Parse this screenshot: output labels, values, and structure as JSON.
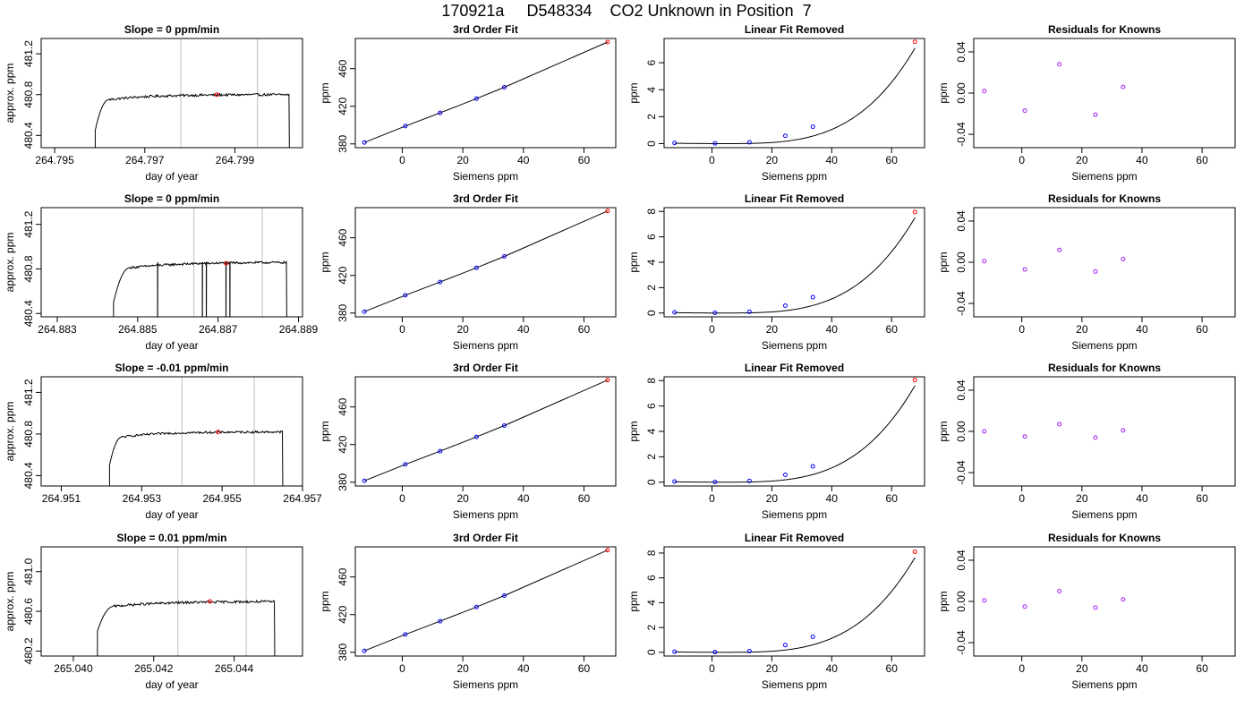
{
  "figure": {
    "title": "170921a     D548334    CO2 Unknown in Position  7"
  },
  "colors": {
    "trace": "#000000",
    "gridline": "#bebebe",
    "marker_standard": "#0000ff",
    "marker_unknown": "#ff0000",
    "residual_marker": "#a020f0"
  },
  "chart_data": [
    {
      "type": "line",
      "panel": "timeseries",
      "row": 1,
      "title": "Slope =  0  ppm/min",
      "xlabel": "day of year",
      "ylabel": "approx. ppm",
      "xlim": [
        264.7947,
        264.8005
      ],
      "ylim": [
        480.28,
        481.35
      ],
      "xticks": [
        264.795,
        264.797,
        264.799
      ],
      "xtick_labels": [
        "264.795",
        "264.797",
        "264.799"
      ],
      "yticks": [
        480.4,
        480.8,
        481.2
      ],
      "ytick_labels": [
        "480.4",
        "480.8",
        "481.2"
      ],
      "vlines": [
        264.7978,
        264.7995
      ],
      "marker": {
        "x": 264.7986,
        "y": 480.8
      },
      "start": 264.7959,
      "end": 264.8002,
      "plateau": 480.8,
      "rise_end": 264.7962,
      "rise_start_level": 480.45,
      "jitter": 0.012,
      "dips": []
    },
    {
      "type": "line",
      "panel": "timeseries",
      "row": 2,
      "title": "Slope =  0  ppm/min",
      "xlabel": "day of year",
      "ylabel": "approx. ppm",
      "xlim": [
        264.8826,
        264.8891
      ],
      "ylim": [
        480.37,
        481.35
      ],
      "xticks": [
        264.883,
        264.885,
        264.887,
        264.889
      ],
      "xtick_labels": [
        "264.883",
        "264.885",
        "264.887",
        "264.889"
      ],
      "yticks": [
        480.4,
        480.8,
        481.2
      ],
      "ytick_labels": [
        "480.4",
        "480.8",
        "481.2"
      ],
      "vlines": [
        264.8864,
        264.8881
      ],
      "marker": {
        "x": 264.8872,
        "y": 480.85
      },
      "start": 264.8844,
      "end": 264.8887,
      "plateau": 480.86,
      "rise_end": 264.8848,
      "rise_start_level": 480.5,
      "jitter": 0.01,
      "dips": [
        264.8855,
        264.8866,
        264.8867,
        264.8872,
        264.8873
      ]
    },
    {
      "type": "line",
      "panel": "timeseries",
      "row": 3,
      "title": "Slope =  -0.01  ppm/min",
      "xlabel": "day of year",
      "ylabel": "approx. ppm",
      "xlim": [
        264.9505,
        264.957
      ],
      "ylim": [
        480.3,
        481.35
      ],
      "xticks": [
        264.951,
        264.953,
        264.955,
        264.957
      ],
      "xtick_labels": [
        "264.951",
        "264.953",
        "264.955",
        "264.957"
      ],
      "yticks": [
        480.4,
        480.8,
        481.2
      ],
      "ytick_labels": [
        "480.4",
        "480.8",
        "481.2"
      ],
      "vlines": [
        264.954,
        264.9558
      ],
      "marker": {
        "x": 264.9549,
        "y": 480.82
      },
      "start": 264.9522,
      "end": 264.9565,
      "plateau": 480.82,
      "rise_end": 264.9525,
      "rise_start_level": 480.5,
      "jitter": 0.01,
      "dips": []
    },
    {
      "type": "line",
      "panel": "timeseries",
      "row": 4,
      "title": "Slope =  0.01  ppm/min",
      "xlabel": "day of year",
      "ylabel": "approx. ppm",
      "xlim": [
        265.0392,
        265.0457
      ],
      "ylim": [
        480.15,
        481.25
      ],
      "xticks": [
        265.04,
        265.042,
        265.044
      ],
      "xtick_labels": [
        "265.040",
        "265.042",
        "265.044"
      ],
      "yticks": [
        480.2,
        480.6,
        481.0
      ],
      "ytick_labels": [
        "480.2",
        "480.6",
        "481.0"
      ],
      "vlines": [
        265.0426,
        265.0443
      ],
      "marker": {
        "x": 265.0434,
        "y": 480.7
      },
      "start": 265.0406,
      "end": 265.045,
      "plateau": 480.7,
      "rise_end": 265.041,
      "rise_start_level": 480.4,
      "jitter": 0.012,
      "dips": []
    },
    {
      "type": "scatter",
      "panel": "fit",
      "row": 1,
      "title": "3rd Order Fit",
      "xlabel": "Siemens ppm",
      "ylabel": "ppm",
      "xlim": [
        -15.5,
        70.5
      ],
      "ylim": [
        376,
        492
      ],
      "xticks": [
        0,
        20,
        40,
        60
      ],
      "xtick_labels": [
        "0",
        "20",
        "40",
        "60"
      ],
      "yticks": [
        380,
        420,
        460
      ],
      "ytick_labels": [
        "380",
        "420",
        "460"
      ],
      "standards": {
        "x": [
          -12.5,
          1,
          12.5,
          24.5,
          33.7
        ],
        "y": [
          381.5,
          398.9,
          413.0,
          428.1,
          440.2
        ]
      },
      "unknown": {
        "x": 67.8,
        "y": 488.2
      }
    },
    {
      "type": "scatter",
      "panel": "fit",
      "row": 2,
      "title": "3rd Order Fit",
      "xlabel": "Siemens ppm",
      "ylabel": "ppm",
      "xlim": [
        -15.5,
        70.5
      ],
      "ylim": [
        376,
        492
      ],
      "xticks": [
        0,
        20,
        40,
        60
      ],
      "xtick_labels": [
        "0",
        "20",
        "40",
        "60"
      ],
      "yticks": [
        380,
        420,
        460
      ],
      "ytick_labels": [
        "380",
        "420",
        "460"
      ],
      "standards": {
        "x": [
          -12.5,
          1,
          12.5,
          24.5,
          33.7
        ],
        "y": [
          381.5,
          398.9,
          413.0,
          428.1,
          440.2
        ]
      },
      "unknown": {
        "x": 67.8,
        "y": 488.5
      }
    },
    {
      "type": "scatter",
      "panel": "fit",
      "row": 3,
      "title": "3rd Order Fit",
      "xlabel": "Siemens ppm",
      "ylabel": "ppm",
      "xlim": [
        -15.5,
        70.5
      ],
      "ylim": [
        376,
        492
      ],
      "xticks": [
        0,
        20,
        40,
        60
      ],
      "xtick_labels": [
        "0",
        "20",
        "40",
        "60"
      ],
      "yticks": [
        380,
        420,
        460
      ],
      "ytick_labels": [
        "380",
        "420",
        "460"
      ],
      "standards": {
        "x": [
          -12.5,
          1,
          12.5,
          24.5,
          33.7
        ],
        "y": [
          381.5,
          398.9,
          413.0,
          428.1,
          440.2
        ]
      },
      "unknown": {
        "x": 67.8,
        "y": 488.5
      }
    },
    {
      "type": "scatter",
      "panel": "fit",
      "row": 4,
      "title": "3rd Order Fit",
      "xlabel": "Siemens ppm",
      "ylabel": "ppm",
      "xlim": [
        -15.5,
        70.5
      ],
      "ylim": [
        376,
        492
      ],
      "xticks": [
        0,
        20,
        40,
        60
      ],
      "xtick_labels": [
        "0",
        "20",
        "40",
        "60"
      ],
      "yticks": [
        380,
        420,
        460
      ],
      "ytick_labels": [
        "380",
        "420",
        "460"
      ],
      "standards": {
        "x": [
          -12.5,
          1,
          12.5,
          24.5,
          33.7
        ],
        "y": [
          381.5,
          398.9,
          413.0,
          428.1,
          440.2
        ]
      },
      "unknown": {
        "x": 67.8,
        "y": 488.5
      }
    },
    {
      "type": "scatter",
      "panel": "linear_removed",
      "row": 1,
      "title": "Linear Fit Removed",
      "xlabel": "Siemens ppm",
      "ylabel": "ppm",
      "xlim": [
        -16,
        71
      ],
      "ylim": [
        -0.3,
        7.8
      ],
      "xticks": [
        0,
        20,
        40,
        60
      ],
      "xtick_labels": [
        "0",
        "20",
        "40",
        "60"
      ],
      "yticks": [
        0,
        2,
        4,
        6
      ],
      "ytick_labels": [
        "0",
        "2",
        "4",
        "6"
      ],
      "standards": {
        "x": [
          -12.5,
          1,
          12.5,
          24.5,
          33.7
        ],
        "y": [
          0.05,
          0.02,
          0.1,
          0.58,
          1.25
        ]
      },
      "unknown": {
        "x": 67.8,
        "y": 7.55
      },
      "curve": {
        "x0": 1,
        "scale": 2.357e-06,
        "power": 3.55
      }
    },
    {
      "type": "scatter",
      "panel": "linear_removed",
      "row": 2,
      "title": "Linear Fit Removed",
      "xlabel": "Siemens ppm",
      "ylabel": "ppm",
      "xlim": [
        -16,
        71
      ],
      "ylim": [
        -0.3,
        8.3
      ],
      "xticks": [
        0,
        20,
        40,
        60
      ],
      "xtick_labels": [
        "0",
        "20",
        "40",
        "60"
      ],
      "yticks": [
        0,
        2,
        4,
        6,
        8
      ],
      "ytick_labels": [
        "0",
        "2",
        "4",
        "6",
        "8"
      ],
      "standards": {
        "x": [
          -12.5,
          1,
          12.5,
          24.5,
          33.7
        ],
        "y": [
          0.05,
          0.02,
          0.1,
          0.58,
          1.25
        ]
      },
      "unknown": {
        "x": 67.8,
        "y": 7.95
      },
      "curve": {
        "x0": 1,
        "scale": 2.5e-06,
        "power": 3.55
      }
    },
    {
      "type": "scatter",
      "panel": "linear_removed",
      "row": 3,
      "title": "Linear Fit Removed",
      "xlabel": "Siemens ppm",
      "ylabel": "ppm",
      "xlim": [
        -16,
        71
      ],
      "ylim": [
        -0.3,
        8.3
      ],
      "xticks": [
        0,
        20,
        40,
        60
      ],
      "xtick_labels": [
        "0",
        "20",
        "40",
        "60"
      ],
      "yticks": [
        0,
        2,
        4,
        6,
        8
      ],
      "ytick_labels": [
        "0",
        "2",
        "4",
        "6",
        "8"
      ],
      "standards": {
        "x": [
          -12.5,
          1,
          12.5,
          24.5,
          33.7
        ],
        "y": [
          0.05,
          0.02,
          0.1,
          0.58,
          1.25
        ]
      },
      "unknown": {
        "x": 67.8,
        "y": 8.05
      },
      "curve": {
        "x0": 1,
        "scale": 2.53e-06,
        "power": 3.55
      }
    },
    {
      "type": "scatter",
      "panel": "linear_removed",
      "row": 4,
      "title": "Linear Fit Removed",
      "xlabel": "Siemens ppm",
      "ylabel": "ppm",
      "xlim": [
        -16,
        71
      ],
      "ylim": [
        -0.3,
        8.5
      ],
      "xticks": [
        0,
        20,
        40,
        60
      ],
      "xtick_labels": [
        "0",
        "20",
        "40",
        "60"
      ],
      "yticks": [
        0,
        2,
        4,
        6,
        8
      ],
      "ytick_labels": [
        "0",
        "2",
        "4",
        "6",
        "8"
      ],
      "standards": {
        "x": [
          -12.5,
          1,
          12.5,
          24.5,
          33.7
        ],
        "y": [
          0.05,
          0.02,
          0.1,
          0.58,
          1.25
        ]
      },
      "unknown": {
        "x": 67.8,
        "y": 8.1
      },
      "curve": {
        "x0": 1,
        "scale": 2.54e-06,
        "power": 3.55
      }
    },
    {
      "type": "scatter",
      "panel": "residuals",
      "row": 1,
      "title": "Residuals for Knowns",
      "xlabel": "Siemens ppm",
      "ylabel": "ppm",
      "xlim": [
        -16,
        71
      ],
      "ylim": [
        -0.053,
        0.053
      ],
      "xticks": [
        0,
        20,
        40,
        60
      ],
      "xtick_labels": [
        "0",
        "20",
        "40",
        "60"
      ],
      "yticks": [
        -0.04,
        0.0,
        0.04
      ],
      "ytick_labels": [
        "-0.04",
        "0.00",
        "0.04"
      ],
      "standards": {
        "x": [
          -12.5,
          1,
          12.5,
          24.5,
          33.7
        ],
        "y": [
          0.002,
          -0.017,
          0.028,
          -0.021,
          0.006
        ]
      }
    },
    {
      "type": "scatter",
      "panel": "residuals",
      "row": 2,
      "title": "Residuals for Knowns",
      "xlabel": "Siemens ppm",
      "ylabel": "ppm",
      "xlim": [
        -16,
        71
      ],
      "ylim": [
        -0.053,
        0.053
      ],
      "xticks": [
        0,
        20,
        40,
        60
      ],
      "xtick_labels": [
        "0",
        "20",
        "40",
        "60"
      ],
      "yticks": [
        -0.04,
        0.0,
        0.04
      ],
      "ytick_labels": [
        "-0.04",
        "0.00",
        "0.04"
      ],
      "standards": {
        "x": [
          -12.5,
          1,
          12.5,
          24.5,
          33.7
        ],
        "y": [
          0.001,
          -0.007,
          0.012,
          -0.009,
          0.003
        ]
      }
    },
    {
      "type": "scatter",
      "panel": "residuals",
      "row": 3,
      "title": "Residuals for Knowns",
      "xlabel": "Siemens ppm",
      "ylabel": "ppm",
      "xlim": [
        -16,
        71
      ],
      "ylim": [
        -0.053,
        0.053
      ],
      "xticks": [
        0,
        20,
        40,
        60
      ],
      "xtick_labels": [
        "0",
        "20",
        "40",
        "60"
      ],
      "yticks": [
        -0.04,
        0.0,
        0.04
      ],
      "ytick_labels": [
        "-0.04",
        "0.00",
        "0.04"
      ],
      "standards": {
        "x": [
          -12.5,
          1,
          12.5,
          24.5,
          33.7
        ],
        "y": [
          0.0,
          -0.005,
          0.007,
          -0.006,
          0.001
        ]
      }
    },
    {
      "type": "scatter",
      "panel": "residuals",
      "row": 4,
      "title": "Residuals for Knowns",
      "xlabel": "Siemens ppm",
      "ylabel": "ppm",
      "xlim": [
        -16,
        71
      ],
      "ylim": [
        -0.053,
        0.053
      ],
      "xticks": [
        0,
        20,
        40,
        60
      ],
      "xtick_labels": [
        "0",
        "20",
        "40",
        "60"
      ],
      "yticks": [
        -0.04,
        0.0,
        0.04
      ],
      "ytick_labels": [
        "-0.04",
        "0.00",
        "0.04"
      ],
      "standards": {
        "x": [
          -12.5,
          1,
          12.5,
          24.5,
          33.7
        ],
        "y": [
          0.001,
          -0.005,
          0.01,
          -0.006,
          0.002
        ]
      }
    }
  ]
}
